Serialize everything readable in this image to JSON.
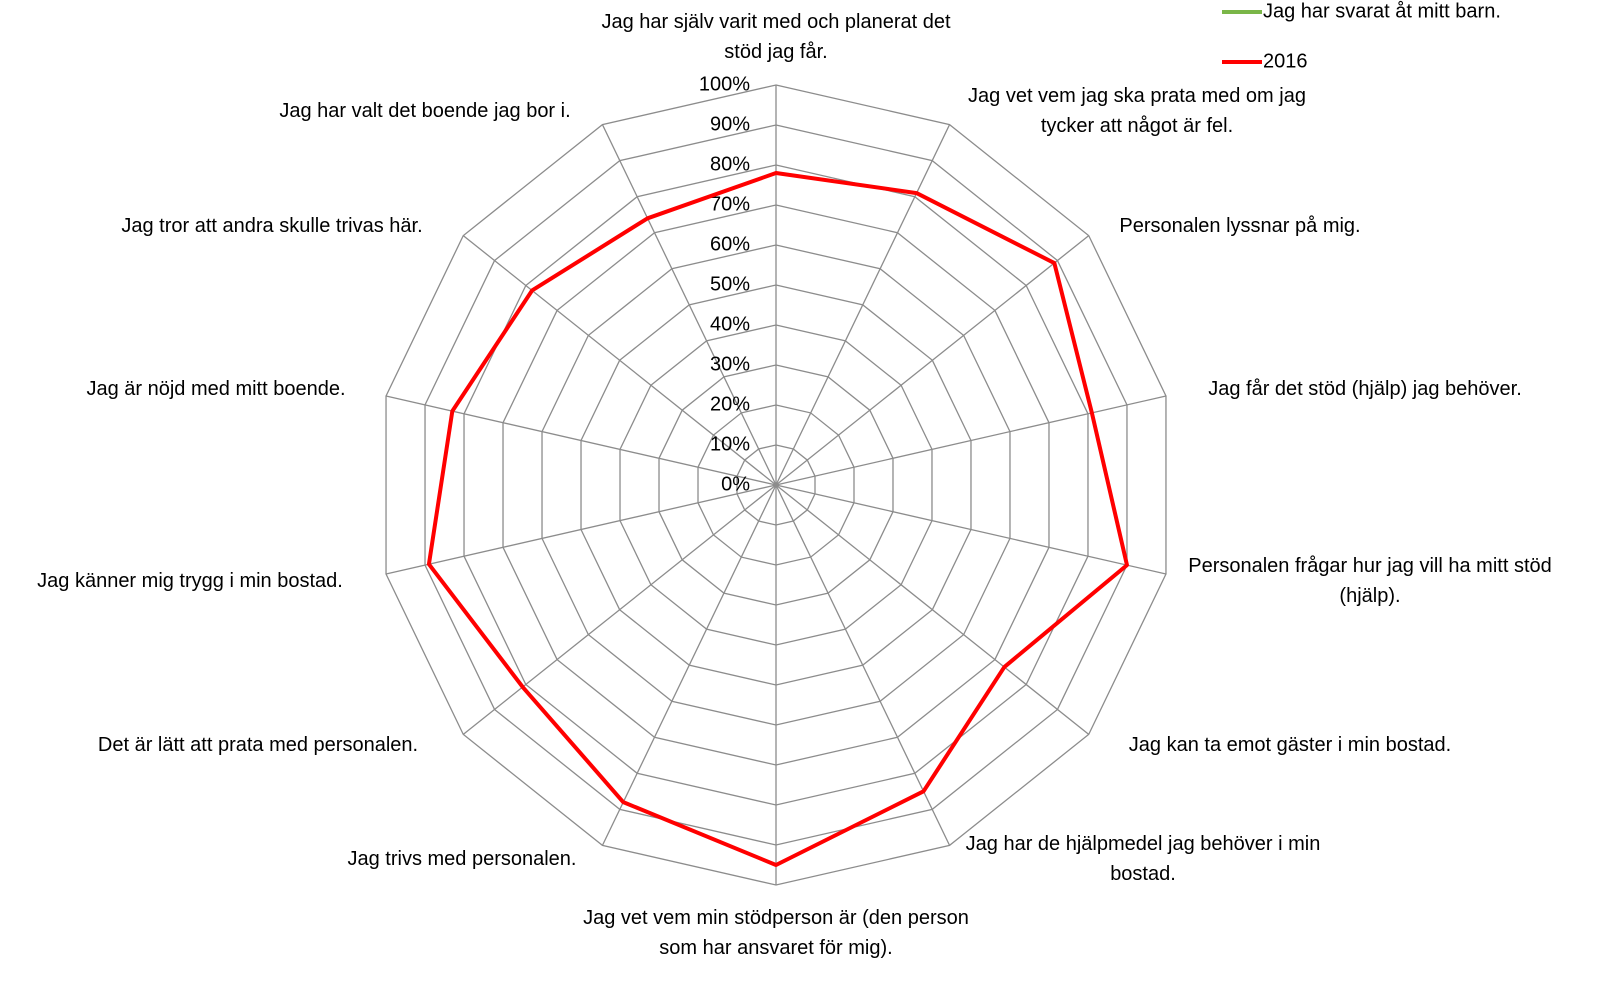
{
  "chart_data": {
    "type": "radar",
    "categories": [
      "Jag har själv varit med och planerat det stöd jag får.",
      "Jag vet vem jag ska prata med om jag tycker att något är fel.",
      "Personalen lyssnar på mig.",
      "Jag får det stöd (hjälp) jag behöver.",
      "Personalen frågar hur jag vill ha mitt stöd (hjälp).",
      "Jag kan ta emot gäster i min bostad.",
      "Jag har de hjälpmedel jag behöver i min bostad.",
      "Jag vet vem min stödperson är (den person som har ansvaret för mig).",
      "Jag trivs med personalen.",
      "Det är lätt att prata med personalen.",
      "Jag känner mig trygg i min bostad.",
      "Jag är nöjd med mitt boende.",
      "Jag tror att andra skulle trivas här.",
      "Jag har valt det boende jag bor i."
    ],
    "series": [
      {
        "name": "Jag har svarat åt mitt barn.",
        "color": "#7ab648",
        "values": [
          null,
          null,
          null,
          null,
          null,
          null,
          null,
          null,
          null,
          null,
          null,
          null,
          null,
          null
        ]
      },
      {
        "name": "2016",
        "color": "#ff0000",
        "values": [
          78,
          81,
          89,
          81,
          90,
          73,
          85,
          95,
          88,
          81,
          89,
          83,
          78,
          74
        ]
      }
    ],
    "ylim": [
      0,
      100
    ],
    "yticks": [
      {
        "value": 0,
        "label": "0%"
      },
      {
        "value": 10,
        "label": "10%"
      },
      {
        "value": 20,
        "label": "20%"
      },
      {
        "value": 30,
        "label": "30%"
      },
      {
        "value": 40,
        "label": "40%"
      },
      {
        "value": 50,
        "label": "50%"
      },
      {
        "value": 60,
        "label": "60%"
      },
      {
        "value": 70,
        "label": "70%"
      },
      {
        "value": 80,
        "label": "80%"
      },
      {
        "value": 90,
        "label": "90%"
      },
      {
        "value": 100,
        "label": "100%"
      }
    ],
    "grid": true
  }
}
